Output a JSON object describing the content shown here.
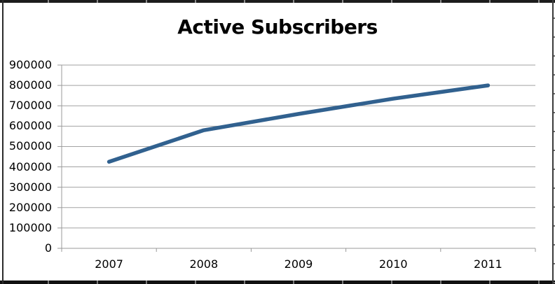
{
  "chart_data": {
    "type": "line",
    "title": "Active Subscribers",
    "categories": [
      "2007",
      "2008",
      "2009",
      "2010",
      "2011"
    ],
    "series": [
      {
        "name": "Active Subscribers",
        "values": [
          425000,
          580000,
          660000,
          735000,
          800000
        ]
      }
    ],
    "xlabel": "",
    "ylabel": "",
    "ylim": [
      0,
      900000
    ],
    "ytick_interval": 100000,
    "ytick_labels": [
      "0",
      "100000",
      "200000",
      "300000",
      "400000",
      "500000",
      "600000",
      "700000",
      "800000",
      "900000"
    ],
    "grid": true,
    "legend_position": "none",
    "line_color": "#31618F",
    "gridline_color": "#A2A2A2",
    "axis_color": "#999999",
    "label_color": "#000000",
    "title_color": "#000000",
    "background_color": "#FFFFFF"
  }
}
